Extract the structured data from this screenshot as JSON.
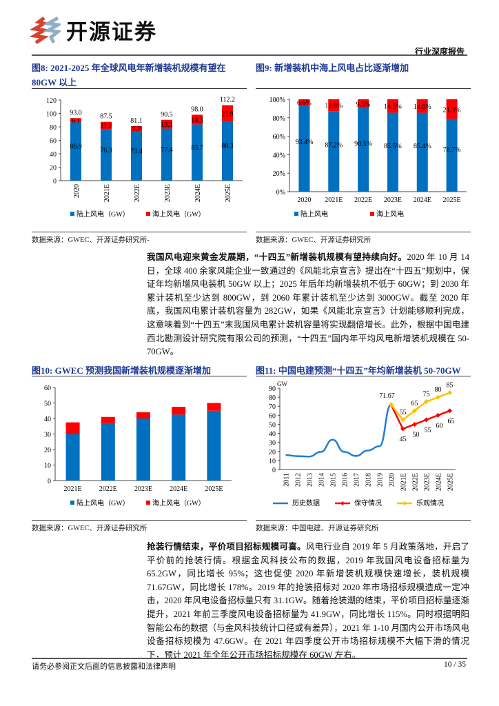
{
  "header": {
    "logo_text": "开源证券",
    "doc_type": "行业深度报告"
  },
  "fig8": {
    "title": "图8:  2021-2025 年全球风电年新增装机规模有望在 80GW 以上",
    "source": "数据来源：GWEC、开源证券研究所-"
  },
  "fig9": {
    "title": "图9:  新增装机中海上风电占比逐渐增加",
    "source": "数据来源：GWEC、开源证券研究所"
  },
  "fig10": {
    "title": "图10:  GWEC 预测我国新增装机规模逐渐增加",
    "source": "数据来源：GWEC、开源证券研究所"
  },
  "fig11": {
    "title": "图11:  中国电建预测“十四五”年均新增装机 50-70GW",
    "source": "数据来源：中国电建、开源证券研究所"
  },
  "colors": {
    "onshore": "#0070c0",
    "offshore": "#ff0000",
    "history": "#1f7fd0",
    "conservative": "#ff0000",
    "optimistic": "#ffc000",
    "title": "#1f3a93"
  },
  "chart_data": [
    {
      "type": "bar",
      "stacked": true,
      "categories": [
        "2020",
        "2021E",
        "2022E",
        "2023E",
        "2024E",
        "2025E"
      ],
      "series": [
        {
          "name": "陆上风电（GW）",
          "values": [
            86.9,
            76.3,
            73.4,
            77.4,
            83.7,
            88.3
          ]
        },
        {
          "name": "海上风电（GW）",
          "values": [
            6.1,
            11.2,
            7.7,
            13.1,
            14.3,
            23.9
          ]
        }
      ],
      "totals": [
        93.0,
        87.5,
        81.1,
        90.5,
        98.0,
        112.2
      ],
      "ylim": [
        0,
        120
      ],
      "yticks": [
        0,
        20,
        40,
        60,
        80,
        100,
        120
      ],
      "legend": "bottom"
    },
    {
      "type": "bar",
      "stacked": true,
      "percent": true,
      "categories": [
        "2020",
        "2021E",
        "2022E",
        "2023E",
        "2024E",
        "2025E"
      ],
      "series": [
        {
          "name": "陆上风电",
          "values": [
            93.4,
            87.2,
            90.5,
            85.5,
            85.4,
            78.7
          ]
        },
        {
          "name": "海上风电",
          "values": [
            6.6,
            12.8,
            9.5,
            14.5,
            14.6,
            21.3
          ]
        }
      ],
      "ylim": [
        0,
        100
      ],
      "yticks": [
        "0%",
        "20%",
        "40%",
        "60%",
        "80%",
        "100%"
      ],
      "legend": "bottom"
    },
    {
      "type": "bar",
      "stacked": true,
      "categories": [
        "2021E",
        "2022E",
        "2023E",
        "2024E",
        "2025E"
      ],
      "series": [
        {
          "name": "陆上风电（GW）",
          "values": [
            30,
            37,
            40,
            42.5,
            45
          ]
        },
        {
          "name": "海上风电（GW）",
          "values": [
            7.5,
            4,
            4,
            5,
            5
          ]
        }
      ],
      "ylim": [
        0,
        60
      ],
      "yticks": [
        0,
        10,
        20,
        30,
        40,
        50,
        60
      ],
      "legend": "bottom"
    },
    {
      "type": "line",
      "ylabel": "GW",
      "categories": [
        "2011",
        "2012",
        "2013",
        "2014",
        "2015",
        "2016",
        "2017",
        "2018",
        "2019",
        "2020",
        "2021E",
        "2022E",
        "2023E",
        "2024E",
        "2025E"
      ],
      "series": [
        {
          "name": "历史数据",
          "values": [
            16,
            14.8,
            14.3,
            19.5,
            33,
            19.5,
            15,
            21,
            25.7,
            71.67,
            null,
            null,
            null,
            null,
            null
          ]
        },
        {
          "name": "保守情况",
          "values": [
            null,
            null,
            null,
            null,
            null,
            null,
            null,
            null,
            null,
            71.67,
            45,
            50,
            55,
            60,
            65
          ]
        },
        {
          "name": "乐观情况",
          "values": [
            null,
            null,
            null,
            null,
            null,
            null,
            null,
            null,
            null,
            71.67,
            55,
            65,
            75,
            80,
            85
          ]
        }
      ],
      "annotations": [
        "71.67"
      ],
      "ylim": [
        0,
        90
      ],
      "yticks": [
        0,
        10,
        20,
        30,
        40,
        50,
        60,
        70,
        80,
        90
      ],
      "legend": "bottom"
    }
  ],
  "para1": {
    "lead": "我国风电迎来黄金发展期，“十四五”新增装机规模有望持续向好。",
    "body": "2020 年 10 月 14 日，全球 400 余家风能企业一致通过的《风能北京宣言》提出在“十四五”规划中，保证年均新增风电装机 50GW 以上；2025 年后年均新增装机不低于 60GW；到 2030 年累计装机至少达到 800GW，到 2060 年累计装机至少达到 3000GW。截至 2020 年底，我国风电累计装机容量为 282GW，如果《风能北京宣言》计划能够顺利完成，这意味着到“十四五”末我国风电累计装机容量将实现翻倍增长。此外，根据中国电建西北勘测设计研究院有限公司的预测，“十四五”国内年平均风电新增装机规模在 50-70GW。"
  },
  "para2": {
    "lead": "抢装行情结束，平价项目招标规模可喜。",
    "body": "风电行业自 2019 年 5 月政策落地，开启了平价前的抢装行情。根据金风科技公布的数据，2019 年我国风电设备招标量为 65.2GW，同比增长 95%；这也促使 2020 年新增装机规模快速增长，装机规模 71.67GW，同比增长 178%。2019 年的抢装招标对 2020 年市场招标规模造成一定冲击，2020 年风电设备招标量只有 31.1GW。随着抢装潮的结束，平价项目招标量逐渐提升，2021 年前三季度风电设备招标量为 41.9GW，同比增长 115%。同时根据明阳智能公布的数据（与金风科技统计口径或有差异），2021 年 1-10 月国内公开市场风电设备招标规模为 47.6GW。在 2021 年四季度公开市场招标规模不大幅下滑的情况下，预计 2021 年全年公开市场招标规模在 60GW 左右。"
  },
  "footer": {
    "disclaimer": "请务必参阅正文后面的信息披露和法律声明",
    "page": "10 / 35"
  }
}
